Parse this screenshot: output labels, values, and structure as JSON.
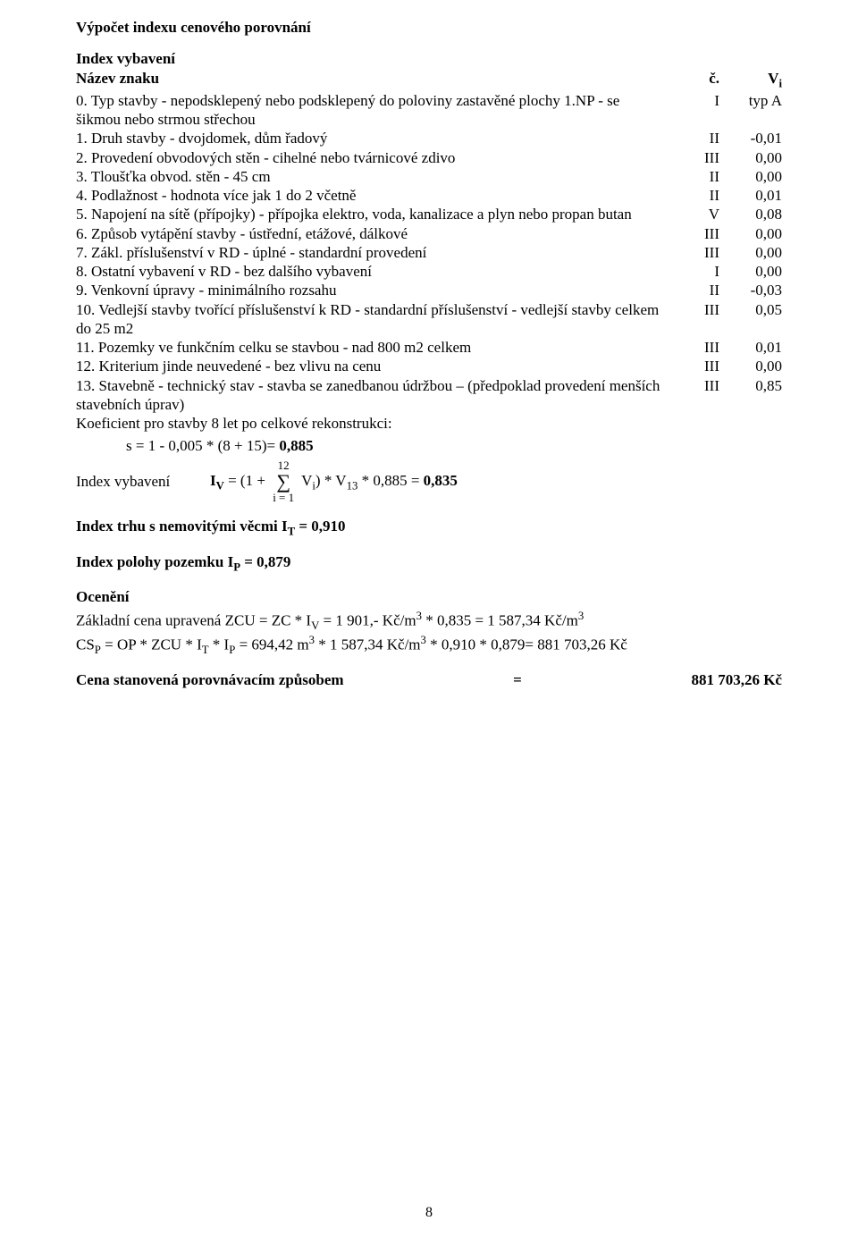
{
  "title": "Výpočet indexu cenového porovnání",
  "section_label": "Index vybavení",
  "header": {
    "name": "Název znaku",
    "c": "č.",
    "v": "Vi"
  },
  "rows": [
    {
      "text": "0. Typ stavby - nepodsklepený nebo podsklepený do poloviny zastavěné plochy 1.NP - se šikmou nebo strmou střechou",
      "c": "I",
      "v": "typ A"
    },
    {
      "text": "1. Druh stavby - dvojdomek, dům řadový",
      "c": "II",
      "v": "-0,01"
    },
    {
      "text": "2. Provedení obvodových stěn - cihelné nebo tvárnicové zdivo",
      "c": "III",
      "v": "0,00"
    },
    {
      "text": "3. Tloušťka obvod. stěn - 45 cm",
      "c": "II",
      "v": "0,00"
    },
    {
      "text": "4. Podlažnost - hodnota více jak 1 do 2 včetně",
      "c": "II",
      "v": "0,01"
    },
    {
      "text": "5. Napojení na sítě (přípojky) - přípojka elektro, voda, kanalizace a plyn nebo propan butan",
      "c": "V",
      "v": "0,08"
    },
    {
      "text": "6. Způsob vytápění stavby - ústřední, etážové, dálkové",
      "c": "III",
      "v": "0,00"
    },
    {
      "text": "7. Zákl. příslušenství v RD - úplné - standardní provedení",
      "c": "III",
      "v": "0,00"
    },
    {
      "text": "8. Ostatní vybavení v RD - bez dalšího vybavení",
      "c": "I",
      "v": "0,00"
    },
    {
      "text": "9. Venkovní úpravy - minimálního rozsahu",
      "c": "II",
      "v": "-0,03"
    },
    {
      "text": "10. Vedlejší stavby tvořící příslušenství k RD - standardní příslušenství - vedlejší stavby celkem do 25 m2",
      "c": "III",
      "v": "0,05"
    },
    {
      "text": "11. Pozemky ve funkčním celku se stavbou - nad 800 m2 celkem",
      "c": "III",
      "v": "0,01"
    },
    {
      "text": "12. Kriterium jinde neuvedené - bez vlivu na cenu",
      "c": "III",
      "v": "0,00"
    },
    {
      "text": "13. Stavebně - technický stav - stavba se zanedbanou údržbou – (předpoklad provedení menších stavebních úprav)",
      "c": "III",
      "v": "0,85"
    }
  ],
  "koef_label": "Koeficient pro stavby 8 let po celkové rekonstrukci:",
  "koef_formula_pre": "s = 1 - 0,005 * (8 + 15)= ",
  "koef_formula_val": "0,885",
  "iv": {
    "label": "Index vybavení",
    "pre": "IV = (1 + ",
    "sum_top": "12",
    "sum_bot": "i = 1",
    "mid": " Vi) * V13 * 0,885 = ",
    "val": "0,835"
  },
  "it_line_pre": "Index trhu s nemovitými věcmi IT = ",
  "it_val": "0,910",
  "ip_line_pre": "Index polohy pozemku IP = ",
  "ip_val": "0,879",
  "ocen_label": "Ocenění",
  "ocen_lines": [
    "Základní cena upravená ZCU = ZC * IV = 1 901,- Kč/m3 * 0,835 = 1 587,34 Kč/m3",
    "CSP = OP * ZCU * IT * IP = 694,42 m3 * 1 587,34 Kč/m3 * 0,910 * 0,879= 881 703,26 Kč"
  ],
  "final_label": "Cena stanovená porovnávacím způsobem",
  "final_eq": "=",
  "final_val": "881 703,26 Kč",
  "page_number": "8"
}
